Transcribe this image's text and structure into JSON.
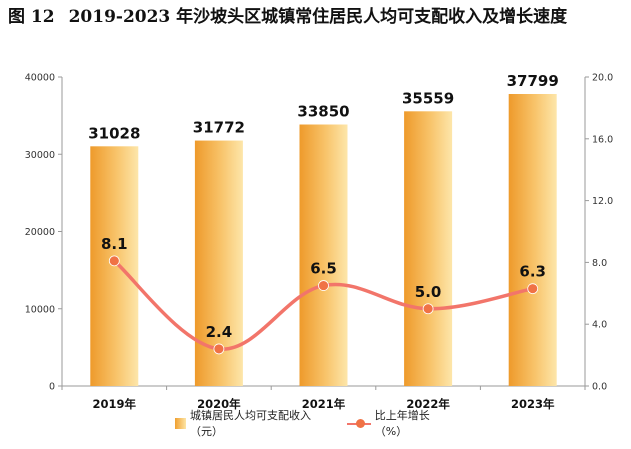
{
  "header": {
    "figure_number": "图 12",
    "title_text": "2019-2023 年沙坡头区城镇常住居民人均可支配收入及增长速度"
  },
  "chart_data": {
    "type": "bar",
    "categories": [
      "2019年",
      "2020年",
      "2021年",
      "2022年",
      "2023年"
    ],
    "series": [
      {
        "name": "城镇居民人均可支配收入（元）",
        "type": "bar",
        "axis": "left",
        "values": [
          31028,
          31772,
          33850,
          35559,
          37799
        ],
        "labels": [
          "31028",
          "31772",
          "33850",
          "35559",
          "37799"
        ],
        "color": "#f0a030"
      },
      {
        "name": "比上年增长（%）",
        "type": "line",
        "axis": "right",
        "values": [
          8.1,
          2.4,
          6.5,
          5.0,
          6.3
        ],
        "labels": [
          "8.1",
          "2.4",
          "6.5",
          "5.0",
          "6.3"
        ],
        "color": "#f2756a"
      }
    ],
    "y_left": {
      "ylim": [
        0,
        40000
      ],
      "ticks": [
        0,
        10000,
        20000,
        30000,
        40000
      ],
      "tick_labels": [
        "0",
        "10000",
        "20000",
        "30000",
        "40000"
      ]
    },
    "y_right": {
      "ylim": [
        0,
        20
      ],
      "ticks": [
        0,
        4,
        8,
        12,
        16,
        20
      ],
      "tick_labels": [
        "0.0",
        "4.0",
        "8.0",
        "12.0",
        "16.0",
        "20.0"
      ]
    },
    "grid": false,
    "legend_position": "bottom"
  },
  "legend": {
    "bar_label": "城镇居民人均可支配收入（元）",
    "line_label": "比上年增长（%）"
  },
  "colors": {
    "bar_dark": "#f0a030",
    "bar_light": "#fde5a6",
    "line": "#f2756a",
    "marker": "#f07245"
  }
}
